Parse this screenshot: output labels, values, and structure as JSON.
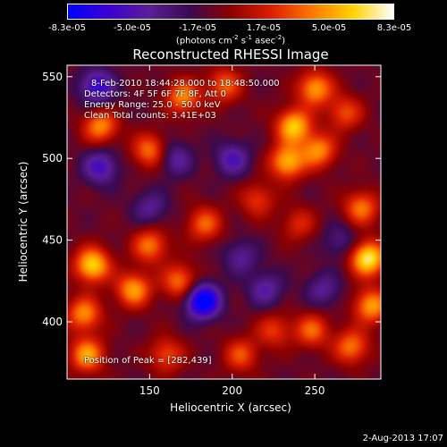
{
  "colorbar": {
    "ticks": [
      "-8.3e-05",
      "-5.0e-05",
      "-1.7e-05",
      "1.7e-05",
      "5.0e-05",
      "8.3e-05"
    ],
    "tick_values": [
      -8.3e-05,
      -5e-05,
      -1.7e-05,
      1.7e-05,
      5e-05,
      8.3e-05
    ],
    "range": [
      -8.3e-05,
      8.3e-05
    ],
    "unit_prefix": "(photons cm",
    "unit_sup1": "-2",
    "unit_mid": " s",
    "unit_sup2": "-1",
    "unit_mid2": " asec",
    "unit_sup3": "-2",
    "unit_suffix": ")",
    "colors": [
      "#0000ff",
      "#3c00d2",
      "#5a1e96",
      "#3a0a50",
      "#8c0000",
      "#dc1e00",
      "#ff7800",
      "#ffd200",
      "#ffffff"
    ]
  },
  "annotations": {
    "line1": "8-Feb-2010 18:44:28.000 to 18:48:50.000",
    "line2": "Detectors: 4F 5F 6F 7F 8F, Att 0",
    "line3": "Energy Range: 25.0 - 50.0 keV",
    "line4": "Clean     Total counts: 3.41E+03",
    "peak": "Position of Peak = [282,439]"
  },
  "timestamp": "2-Aug-2013 17:07",
  "chart_data": {
    "type": "heatmap",
    "title": "Reconstructed RHESSI Image",
    "xlabel": "Heliocentric X (arcsec)",
    "ylabel": "Heliocentric Y (arcsec)",
    "xlim": [
      100,
      290
    ],
    "ylim": [
      365,
      557
    ],
    "xticks": [
      150,
      200,
      250
    ],
    "yticks": [
      400,
      450,
      500,
      550
    ],
    "peak_position": [
      282,
      439
    ],
    "blobs": [
      {
        "x": 237,
        "y": 520,
        "v": 7e-05
      },
      {
        "x": 233,
        "y": 498,
        "v": 6.5e-05
      },
      {
        "x": 252,
        "y": 505,
        "v": 5.5e-05
      },
      {
        "x": 250,
        "y": 543,
        "v": 6e-05
      },
      {
        "x": 268,
        "y": 528,
        "v": 4e-05
      },
      {
        "x": 282,
        "y": 439,
        "v": 8.3e-05
      },
      {
        "x": 278,
        "y": 470,
        "v": 5e-05
      },
      {
        "x": 284,
        "y": 410,
        "v": 6e-05
      },
      {
        "x": 272,
        "y": 385,
        "v": 5e-05
      },
      {
        "x": 248,
        "y": 395,
        "v": 4.5e-05
      },
      {
        "x": 115,
        "y": 435,
        "v": 7.5e-05
      },
      {
        "x": 110,
        "y": 405,
        "v": 5.5e-05
      },
      {
        "x": 112,
        "y": 380,
        "v": 6e-05
      },
      {
        "x": 140,
        "y": 420,
        "v": 6e-05
      },
      {
        "x": 150,
        "y": 447,
        "v": 5e-05
      },
      {
        "x": 168,
        "y": 425,
        "v": 5e-05
      },
      {
        "x": 183,
        "y": 460,
        "v": 4.5e-05
      },
      {
        "x": 170,
        "y": 538,
        "v": 5.5e-05
      },
      {
        "x": 150,
        "y": 505,
        "v": 5e-05
      },
      {
        "x": 120,
        "y": 520,
        "v": 5.5e-05
      },
      {
        "x": 195,
        "y": 545,
        "v": 4.5e-05
      },
      {
        "x": 215,
        "y": 475,
        "v": 3.5e-05
      },
      {
        "x": 225,
        "y": 395,
        "v": 3.5e-05
      },
      {
        "x": 205,
        "y": 380,
        "v": 4e-05
      },
      {
        "x": 160,
        "y": 380,
        "v": 4e-05
      },
      {
        "x": 240,
        "y": 460,
        "v": 3e-05
      },
      {
        "x": 120,
        "y": 495,
        "v": -4.5e-05
      },
      {
        "x": 118,
        "y": 544,
        "v": -5.5e-05
      },
      {
        "x": 182,
        "y": 413,
        "v": -8.3e-05
      },
      {
        "x": 165,
        "y": 500,
        "v": -3.5e-05
      },
      {
        "x": 200,
        "y": 500,
        "v": -4e-05
      },
      {
        "x": 220,
        "y": 420,
        "v": -3.5e-05
      },
      {
        "x": 205,
        "y": 440,
        "v": -3e-05
      },
      {
        "x": 150,
        "y": 470,
        "v": -3e-05
      },
      {
        "x": 255,
        "y": 420,
        "v": -3e-05
      },
      {
        "x": 265,
        "y": 450,
        "v": -2.5e-05
      }
    ]
  }
}
